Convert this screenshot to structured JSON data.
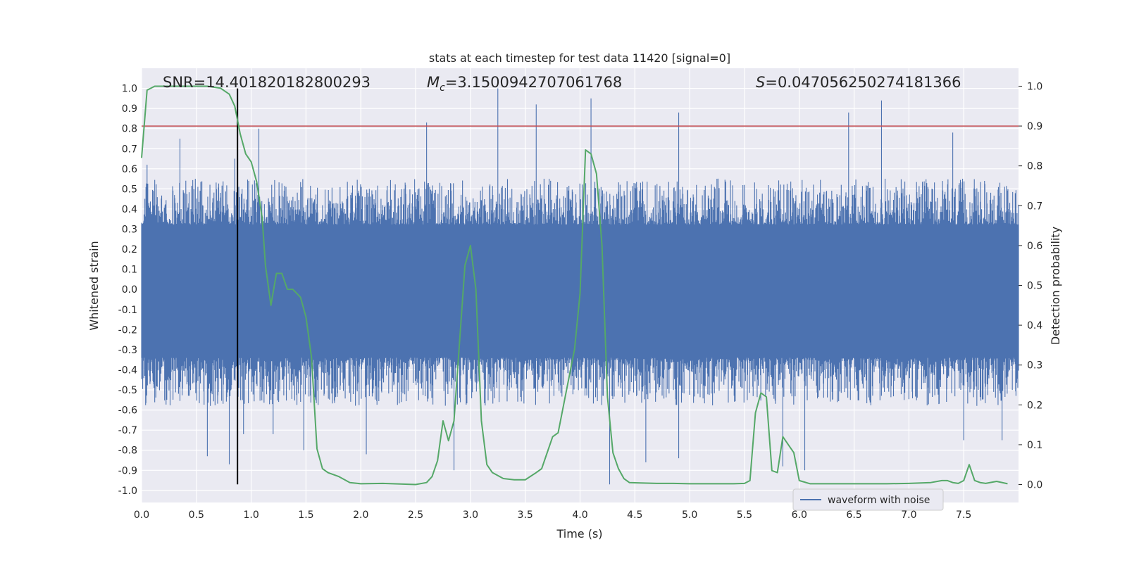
{
  "chart_data": {
    "type": "line",
    "title": "stats at each timestep for test data 11420 [signal=0]",
    "xlabel": "Time (s)",
    "ylabel": "Whitened strain",
    "y2label": "Detection probability",
    "xlim": [
      0.0,
      8.0
    ],
    "ylim": [
      -1.06,
      1.1
    ],
    "y2lim": [
      -0.045,
      1.045
    ],
    "xticks": [
      "0.0",
      "0.5",
      "1.0",
      "1.5",
      "2.0",
      "2.5",
      "3.0",
      "3.5",
      "4.0",
      "4.5",
      "5.0",
      "5.5",
      "6.0",
      "6.5",
      "7.0",
      "7.5"
    ],
    "yticks": [
      "-1.0",
      "-0.9",
      "-0.8",
      "-0.7",
      "-0.6",
      "-0.5",
      "-0.4",
      "-0.3",
      "-0.2",
      "-0.1",
      "0.0",
      "0.1",
      "0.2",
      "0.3",
      "0.4",
      "0.5",
      "0.6",
      "0.7",
      "0.8",
      "0.9",
      "1.0"
    ],
    "y2ticks": [
      "0.0",
      "0.1",
      "0.2",
      "0.3",
      "0.4",
      "0.5",
      "0.6",
      "0.7",
      "0.8",
      "0.9",
      "1.0"
    ],
    "grid": true,
    "legend": {
      "position": "lower-right",
      "entries": [
        "waveform with noise"
      ]
    },
    "annotations": {
      "snr": "SNR=14.401820182800293",
      "mc_symbol": "M",
      "mc_sub": "c",
      "mc_value": "=3.1500942707061768",
      "s_symbol": "S",
      "s_value": "=0.047056250274181366"
    },
    "threshold_line": {
      "axis": "right",
      "value": 0.9
    },
    "marker_line": {
      "x": 0.875,
      "y_range": [
        -0.97,
        1.0
      ]
    },
    "waveform": {
      "name": "waveform with noise",
      "x_range": [
        0.0,
        8.0
      ],
      "envelope_pos_typical": 0.38,
      "envelope_neg_typical": -0.4,
      "peaks": [
        {
          "x": 0.05,
          "y": 0.62
        },
        {
          "x": 0.35,
          "y": 0.75
        },
        {
          "x": 0.85,
          "y": 0.65
        },
        {
          "x": 1.07,
          "y": 0.8
        },
        {
          "x": 2.6,
          "y": 0.83
        },
        {
          "x": 3.25,
          "y": 1.0
        },
        {
          "x": 3.6,
          "y": 0.92
        },
        {
          "x": 4.1,
          "y": 0.95
        },
        {
          "x": 4.9,
          "y": 0.88
        },
        {
          "x": 6.45,
          "y": 0.88
        },
        {
          "x": 6.75,
          "y": 0.94
        },
        {
          "x": 7.4,
          "y": 0.78
        }
      ],
      "troughs": [
        {
          "x": 0.6,
          "y": -0.83
        },
        {
          "x": 0.8,
          "y": -0.87
        },
        {
          "x": 0.93,
          "y": -0.72
        },
        {
          "x": 1.2,
          "y": -0.72
        },
        {
          "x": 1.48,
          "y": -0.8
        },
        {
          "x": 2.05,
          "y": -0.82
        },
        {
          "x": 2.85,
          "y": -0.9
        },
        {
          "x": 4.27,
          "y": -0.97
        },
        {
          "x": 4.6,
          "y": -0.86
        },
        {
          "x": 4.9,
          "y": -0.84
        },
        {
          "x": 5.85,
          "y": -0.88
        },
        {
          "x": 6.05,
          "y": -0.9
        },
        {
          "x": 7.5,
          "y": -0.75
        },
        {
          "x": 7.85,
          "y": -0.75
        }
      ]
    },
    "probability_series": {
      "x": [
        0.0,
        0.05,
        0.12,
        0.2,
        0.3,
        0.45,
        0.6,
        0.72,
        0.8,
        0.85,
        0.9,
        0.95,
        1.0,
        1.05,
        1.1,
        1.13,
        1.18,
        1.23,
        1.28,
        1.33,
        1.38,
        1.45,
        1.5,
        1.55,
        1.6,
        1.65,
        1.7,
        1.8,
        1.9,
        2.0,
        2.2,
        2.5,
        2.6,
        2.65,
        2.7,
        2.75,
        2.8,
        2.85,
        2.95,
        3.0,
        3.05,
        3.1,
        3.15,
        3.2,
        3.3,
        3.4,
        3.5,
        3.6,
        3.65,
        3.7,
        3.75,
        3.8,
        3.85,
        3.9,
        3.95,
        4.0,
        4.05,
        4.1,
        4.15,
        4.2,
        4.25,
        4.3,
        4.35,
        4.4,
        4.45,
        4.55,
        4.7,
        4.85,
        5.0,
        5.2,
        5.4,
        5.5,
        5.55,
        5.6,
        5.65,
        5.7,
        5.75,
        5.8,
        5.85,
        5.9,
        5.95,
        6.0,
        6.1,
        6.3,
        6.5,
        6.8,
        7.0,
        7.2,
        7.3,
        7.35,
        7.4,
        7.45,
        7.5,
        7.55,
        7.6,
        7.65,
        7.7,
        7.8,
        7.9
      ],
      "y": [
        0.82,
        0.99,
        1.0,
        1.0,
        1.0,
        1.0,
        1.0,
        0.995,
        0.98,
        0.95,
        0.88,
        0.83,
        0.81,
        0.76,
        0.67,
        0.55,
        0.45,
        0.53,
        0.53,
        0.49,
        0.49,
        0.47,
        0.42,
        0.32,
        0.09,
        0.04,
        0.03,
        0.02,
        0.005,
        0.002,
        0.003,
        0.0,
        0.005,
        0.02,
        0.06,
        0.16,
        0.11,
        0.16,
        0.55,
        0.6,
        0.49,
        0.16,
        0.05,
        0.03,
        0.015,
        0.012,
        0.012,
        0.03,
        0.04,
        0.08,
        0.12,
        0.13,
        0.2,
        0.27,
        0.34,
        0.48,
        0.84,
        0.83,
        0.78,
        0.6,
        0.22,
        0.08,
        0.04,
        0.015,
        0.005,
        0.004,
        0.003,
        0.003,
        0.002,
        0.002,
        0.002,
        0.003,
        0.01,
        0.18,
        0.23,
        0.22,
        0.035,
        0.03,
        0.12,
        0.1,
        0.08,
        0.01,
        0.002,
        0.002,
        0.002,
        0.002,
        0.003,
        0.005,
        0.01,
        0.01,
        0.005,
        0.003,
        0.01,
        0.05,
        0.01,
        0.005,
        0.003,
        0.008,
        0.002
      ]
    },
    "colors": {
      "waveform": "#4c72b0",
      "probability": "#55a868",
      "threshold": "#c44e52",
      "marker": "#000000",
      "axes_bg": "#eaeaf2",
      "grid": "#ffffff"
    }
  }
}
